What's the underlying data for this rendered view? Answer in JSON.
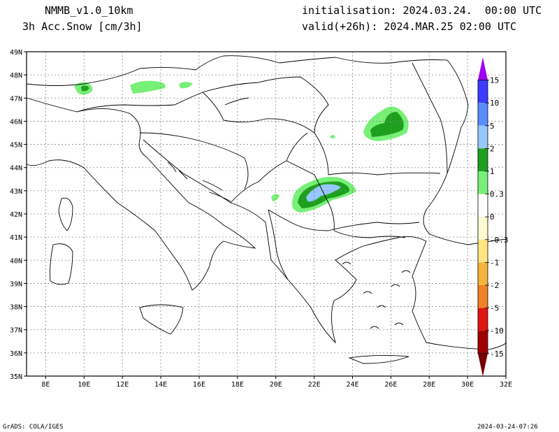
{
  "header": {
    "model": "NMMB_v1.0_10km",
    "variable": "3h Acc.Snow [cm/3h]",
    "init": "initialisation: 2024.03.24.  00:00 UTC",
    "valid": "valid(+26h): 2024.MAR.25 02:00 UTC"
  },
  "footer": {
    "left": "GrADS: COLA/IGES",
    "right": "2024-03-24-07:26"
  },
  "map": {
    "lon_range": [
      7,
      32
    ],
    "lat_range": [
      35,
      49
    ],
    "lon_ticks": [
      "8E",
      "10E",
      "12E",
      "14E",
      "16E",
      "18E",
      "20E",
      "22E",
      "24E",
      "26E",
      "28E",
      "30E",
      "32E"
    ],
    "lat_ticks": [
      "35N",
      "36N",
      "37N",
      "38N",
      "39N",
      "40N",
      "41N",
      "42N",
      "43N",
      "44N",
      "45N",
      "46N",
      "47N",
      "48N",
      "49N"
    ],
    "grid": true
  },
  "colorbar": {
    "labels": [
      "15",
      "10",
      "5",
      "2",
      "1",
      "0.3",
      "0",
      "-0.3",
      "-1",
      "-2",
      "-5",
      "-10",
      "-15"
    ],
    "colors": [
      "#a000f0",
      "#3c3cff",
      "#5a8cff",
      "#96c8ff",
      "#1ea01e",
      "#78f078",
      "#ffffff",
      "#fffad2",
      "#ffe682",
      "#f5b43c",
      "#f08228",
      "#e11414",
      "#a00000",
      "#780000"
    ]
  }
}
